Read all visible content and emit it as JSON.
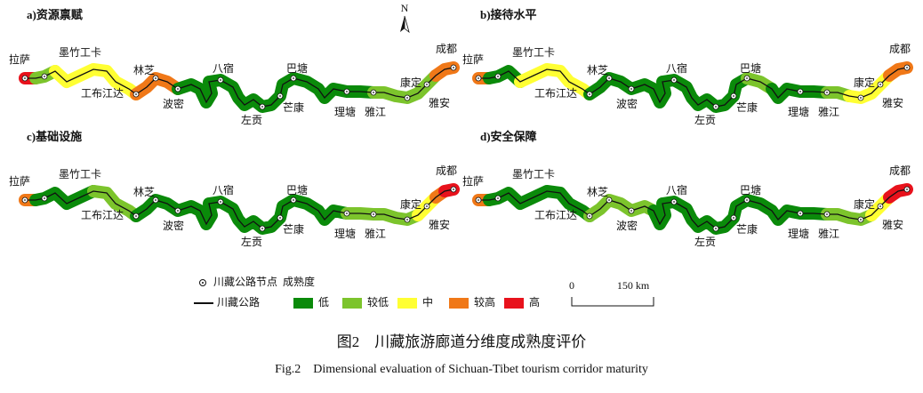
{
  "panels": [
    {
      "title": "a)资源禀赋"
    },
    {
      "title": "b)接待水平"
    },
    {
      "title": "c)基础设施"
    },
    {
      "title": "d)安全保障"
    }
  ],
  "nodes": [
    "拉萨",
    "墨竹工卡",
    "工布江达",
    "林芝",
    "波密",
    "八宿",
    "左贡",
    "芒康",
    "巴塘",
    "理塘",
    "雅江",
    "康定",
    "雅安",
    "成都"
  ],
  "north": "N",
  "legend": {
    "node": "川藏公路节点",
    "title": "成熟度",
    "road": "川藏公路",
    "levels": [
      "低",
      "较低",
      "中",
      "较高",
      "高"
    ]
  },
  "scale": {
    "start": "0",
    "end": "150 km"
  },
  "caption": {
    "zh": "图2　川藏旅游廊道分维度成熟度评价",
    "en": "Fig.2　Dimensional evaluation of Sichuan-Tibet tourism corridor maturity"
  }
}
